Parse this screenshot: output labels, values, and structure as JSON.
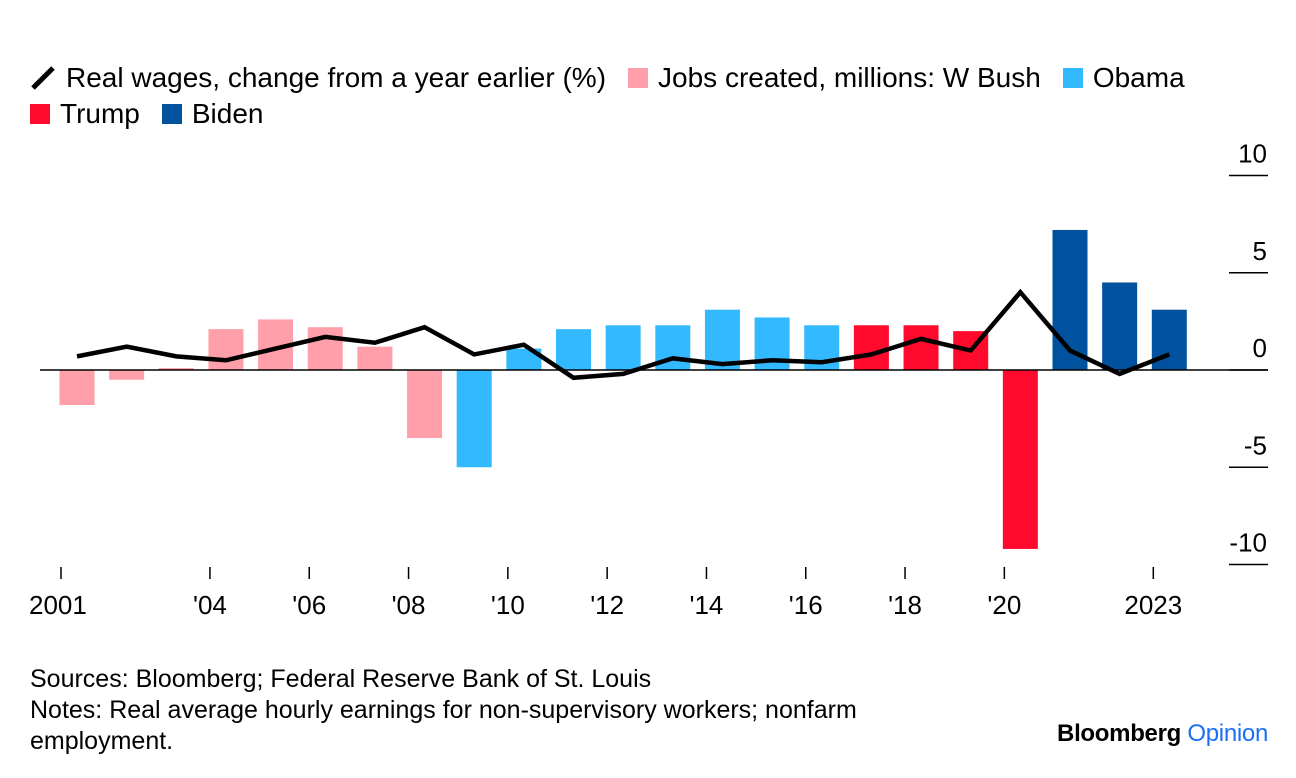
{
  "legend": {
    "line_label": "Real wages, change from a year earlier (%)",
    "bush_label": "Jobs created, millions: W Bush",
    "obama_label": "Obama",
    "trump_label": "Trump",
    "biden_label": "Biden"
  },
  "colors": {
    "bush": "#ff9fa9",
    "obama": "#33b9ff",
    "trump": "#ff0a2d",
    "biden": "#00519e",
    "line": "#000000"
  },
  "chart_data": {
    "type": "bar",
    "years": [
      2001,
      2002,
      2003,
      2004,
      2005,
      2006,
      2007,
      2008,
      2009,
      2010,
      2011,
      2012,
      2013,
      2014,
      2015,
      2016,
      2017,
      2018,
      2019,
      2020,
      2021,
      2022,
      2023
    ],
    "series": [
      {
        "name": "Jobs created, millions",
        "values": [
          -1.8,
          -0.5,
          0.1,
          2.1,
          2.6,
          2.2,
          1.2,
          -3.5,
          -5.0,
          1.1,
          2.1,
          2.3,
          2.3,
          3.1,
          2.7,
          2.3,
          2.3,
          2.3,
          2.0,
          -9.2,
          7.2,
          4.5,
          3.1
        ],
        "president": [
          "W Bush",
          "W Bush",
          "W Bush",
          "W Bush",
          "W Bush",
          "W Bush",
          "W Bush",
          "W Bush",
          "Obama",
          "Obama",
          "Obama",
          "Obama",
          "Obama",
          "Obama",
          "Obama",
          "Obama",
          "Trump",
          "Trump",
          "Trump",
          "Trump",
          "Biden",
          "Biden",
          "Biden"
        ]
      },
      {
        "name": "Real wages, change from a year earlier (%)",
        "values": [
          0.7,
          1.2,
          0.7,
          0.5,
          1.1,
          1.7,
          1.4,
          2.2,
          0.8,
          1.3,
          -0.4,
          -0.2,
          0.6,
          0.3,
          0.5,
          0.4,
          0.8,
          1.6,
          1.0,
          4.0,
          1.0,
          -0.2,
          0.8
        ]
      }
    ],
    "ylim": [
      -10.5,
      10
    ],
    "y_ticks": [
      10,
      5,
      0,
      -5,
      -10
    ],
    "y_tick_labels": [
      "10",
      "5",
      "0",
      "-5",
      "-10"
    ],
    "x_ticks": [
      {
        "year": 2001,
        "label": "2001"
      },
      {
        "year": 2004,
        "label": "'04"
      },
      {
        "year": 2006,
        "label": "'06"
      },
      {
        "year": 2008,
        "label": "'08"
      },
      {
        "year": 2010,
        "label": "'10"
      },
      {
        "year": 2012,
        "label": "'12"
      },
      {
        "year": 2014,
        "label": "'14"
      },
      {
        "year": 2016,
        "label": "'16"
      },
      {
        "year": 2018,
        "label": "'18"
      },
      {
        "year": 2020,
        "label": "'20"
      },
      {
        "year": 2023,
        "label": "2023"
      }
    ],
    "grid": false,
    "legend_position": "top"
  },
  "footer": {
    "sources": "Sources: Bloomberg; Federal Reserve Bank of St. Louis",
    "notes": "Notes: Real average hourly earnings for non-supervisory workers; nonfarm employment."
  },
  "brand": {
    "part1": "Bloomberg",
    "part2": "Opinion"
  }
}
